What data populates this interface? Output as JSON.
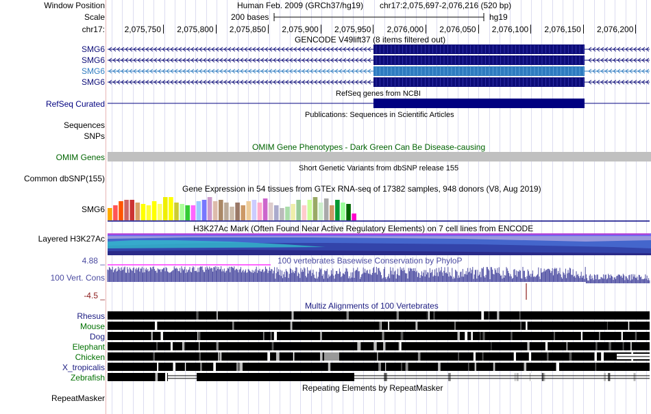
{
  "header": {
    "window_position_label": "Window Position",
    "scale_label": "Scale",
    "chrom_label": "chr17:",
    "assembly": "Human Feb. 2009 (GRCh37/hg19)",
    "position": "chr17:2,075,697-2,076,216 (520 bp)",
    "scale_bases": "200 bases",
    "db": "hg19",
    "ticks": [
      "2,075,750",
      "2,075,800",
      "2,075,850",
      "2,075,900",
      "2,075,950",
      "2,076,000",
      "2,076,050",
      "2,076,100",
      "2,076,150",
      "2,076,200"
    ]
  },
  "colors": {
    "gencode": "#0c0c78",
    "gencode_hl": "#2e7bc0",
    "refseq": "#000080",
    "omim": "#006400",
    "h3k27": "#3a3aa0",
    "cons": "#4a4aa0",
    "cons_neg": "#8b1a1a",
    "multiz": "#1a1a80",
    "species_green": "#007000",
    "grey_bar": "#c0c0c0"
  },
  "tracks": {
    "gencode": {
      "title": "GENCODE V49lift37 (8 items filtered out)",
      "items": [
        "SMG6",
        "SMG6",
        "SMG6",
        "SMG6"
      ]
    },
    "refseq": {
      "title": "RefSeq genes from NCBI",
      "label": "RefSeq Curated"
    },
    "publications": {
      "title": "Publications: Sequences in Scientific Articles",
      "label": "Sequences"
    },
    "snps_label": "SNPs",
    "omim": {
      "title": "OMIM Gene Phenotypes - Dark Green Can Be Disease-causing",
      "label": "OMIM Genes"
    },
    "dbsnp": {
      "title": "Short Genetic Variants from dbSNP release 155",
      "label": "Common dbSNP(155)"
    },
    "gtex": {
      "title": "Gene Expression in 54 tissues from GTEx RNA-seq of 17382 samples, 948 donors (V8, Aug 2019)",
      "label": "SMG6"
    },
    "h3k27": {
      "title": "H3K27Ac Mark (Often Found Near Active Regulatory Elements) on 7 cell lines from ENCODE",
      "label": "Layered H3K27Ac"
    },
    "cons": {
      "title": "100 vertebrates Basewise Conservation by PhyloP",
      "label": "100 Vert. Cons",
      "max": "4.88 _",
      "min": "-4.5 _"
    },
    "multiz": {
      "title": "Multiz Alignments of 100 Vertebrates",
      "species": [
        "Rhesus",
        "Mouse",
        "Dog",
        "Elephant",
        "Chicken",
        "X_tropicalis",
        "Zebrafish"
      ]
    },
    "repeatmasker": {
      "title": "Repeating Elements by RepeatMasker",
      "label": "RepeatMasker"
    }
  }
}
